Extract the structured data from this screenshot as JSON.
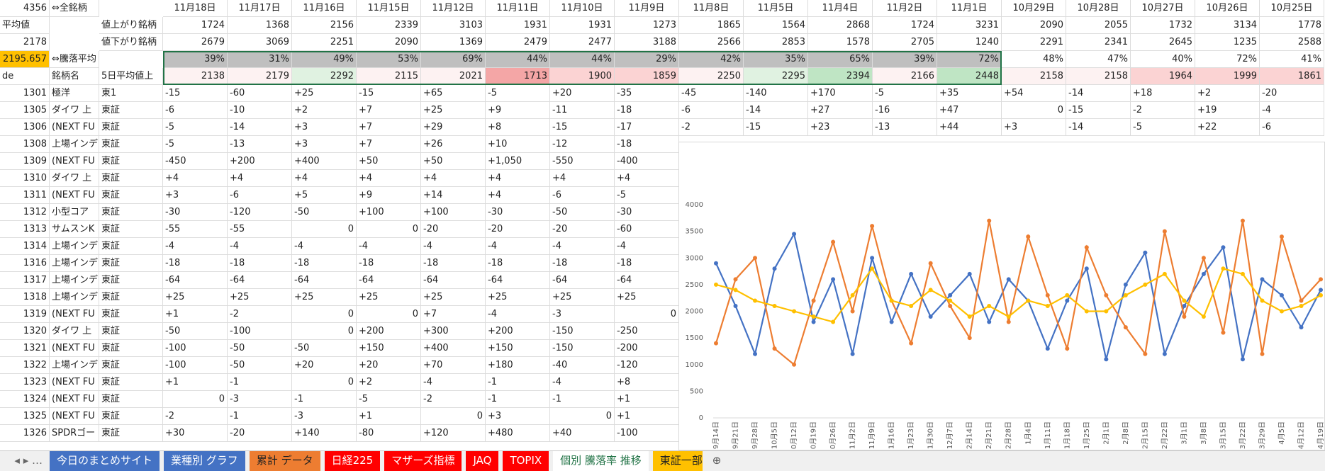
{
  "sheet": {
    "header_rows": [
      {
        "a": "4356",
        "b": "⇔全銘柄",
        "cells": [
          "11月18日",
          "11月17日",
          "11月16日",
          "11月15日",
          "11月12日",
          "11月11日",
          "11月10日",
          "11月9日",
          "11月8日",
          "11月5日",
          "11月4日",
          "11月2日",
          "11月1日",
          "10月29日",
          "10月28日",
          "10月27日",
          "10月26日",
          "10月25日"
        ]
      },
      {
        "a": "平均値",
        "c": "値上がり銘柄",
        "cells": [
          "1724",
          "1368",
          "2156",
          "2339",
          "3103",
          "1931",
          "1931",
          "1273",
          "1865",
          "1564",
          "2868",
          "1724",
          "3231",
          "2090",
          "2055",
          "1732",
          "3134",
          "1778"
        ]
      },
      {
        "a": "2178",
        "c": "値下がり銘柄",
        "cells": [
          "2679",
          "3069",
          "2251",
          "2090",
          "1369",
          "2479",
          "2477",
          "3188",
          "2566",
          "2853",
          "1578",
          "2705",
          "1240",
          "2291",
          "2341",
          "2645",
          "1235",
          "2588"
        ]
      },
      {
        "a": "2195.657",
        "b": "⇔騰落平均",
        "cells": [
          "39%",
          "31%",
          "49%",
          "53%",
          "69%",
          "44%",
          "44%",
          "29%",
          "42%",
          "35%",
          "65%",
          "39%",
          "72%",
          "48%",
          "47%",
          "40%",
          "72%",
          "41%"
        ]
      },
      {
        "a": "de",
        "b": "銘柄名",
        "c": "5日平均値上",
        "cells": [
          "2138",
          "2179",
          "2292",
          "2115",
          "2021",
          "1713",
          "1900",
          "1859",
          "2250",
          "2295",
          "2394",
          "2166",
          "2448",
          "2158",
          "2158",
          "1964",
          "1999",
          "1861"
        ]
      }
    ],
    "rows": [
      {
        "code": "1301",
        "name": "極洋",
        "market": "東1",
        "cells": [
          "-15",
          "-60",
          "+25",
          "-15",
          "+65",
          "-5",
          "+20",
          "-35",
          "-45",
          "-140",
          "+170",
          "-5",
          "+35",
          "+54",
          "-14",
          "+18",
          "+2",
          "-20"
        ]
      },
      {
        "code": "1305",
        "name": "ダイワ 上",
        "market": "東証",
        "cells": [
          "-6",
          "-10",
          "+2",
          "+7",
          "+25",
          "+9",
          "-11",
          "-18",
          "-6",
          "-14",
          "+27",
          "-16",
          "+47",
          "0",
          "-15",
          "-2",
          "+19",
          "-4"
        ]
      },
      {
        "code": "1306",
        "name": "(NEXT FU",
        "market": "東証",
        "cells": [
          "-5",
          "-14",
          "+3",
          "+7",
          "+29",
          "+8",
          "-15",
          "-17",
          "-2",
          "-15",
          "+23",
          "-13",
          "+44",
          "+3",
          "-14",
          "-5",
          "+22",
          "-6"
        ]
      },
      {
        "code": "1308",
        "name": "上場インデ",
        "market": "東証",
        "cells": [
          "-5",
          "-13",
          "+3",
          "+7",
          "+26",
          "+10",
          "-12",
          "-18"
        ]
      },
      {
        "code": "1309",
        "name": "(NEXT FU",
        "market": "東証",
        "cells": [
          "-450",
          "+200",
          "+400",
          "+50",
          "+50",
          "+1,050",
          "-550",
          "-400"
        ]
      },
      {
        "code": "1310",
        "name": "ダイワ 上",
        "market": "東証",
        "cells": [
          "+4",
          "+4",
          "+4",
          "+4",
          "+4",
          "+4",
          "+4",
          "+4"
        ]
      },
      {
        "code": "1311",
        "name": "(NEXT FU",
        "market": "東証",
        "cells": [
          "+3",
          "-6",
          "+5",
          "+9",
          "+14",
          "+4",
          "-6",
          "-5"
        ]
      },
      {
        "code": "1312",
        "name": "小型コア",
        "market": "東証",
        "cells": [
          "-30",
          "-120",
          "-50",
          "+100",
          "+100",
          "-30",
          "-50",
          "-30"
        ]
      },
      {
        "code": "1313",
        "name": "サムスンK",
        "market": "東証",
        "cells": [
          "-55",
          "-55",
          "0",
          "0",
          "-20",
          "-20",
          "-20",
          "-60"
        ]
      },
      {
        "code": "1314",
        "name": "上場インデ",
        "market": "東証",
        "cells": [
          "-4",
          "-4",
          "-4",
          "-4",
          "-4",
          "-4",
          "-4",
          "-4"
        ]
      },
      {
        "code": "1316",
        "name": "上場インデ",
        "market": "東証",
        "cells": [
          "-18",
          "-18",
          "-18",
          "-18",
          "-18",
          "-18",
          "-18",
          "-18"
        ]
      },
      {
        "code": "1317",
        "name": "上場インデ",
        "market": "東証",
        "cells": [
          "-64",
          "-64",
          "-64",
          "-64",
          "-64",
          "-64",
          "-64",
          "-64"
        ]
      },
      {
        "code": "1318",
        "name": "上場インデ",
        "market": "東証",
        "cells": [
          "+25",
          "+25",
          "+25",
          "+25",
          "+25",
          "+25",
          "+25",
          "+25"
        ]
      },
      {
        "code": "1319",
        "name": "(NEXT FU",
        "market": "東証",
        "cells": [
          "+1",
          "-2",
          "0",
          "0",
          "+7",
          "-4",
          "-3",
          "0"
        ]
      },
      {
        "code": "1320",
        "name": "ダイワ 上",
        "market": "東証",
        "cells": [
          "-50",
          "-100",
          "0",
          "+200",
          "+300",
          "+200",
          "-150",
          "-250"
        ]
      },
      {
        "code": "1321",
        "name": "(NEXT FU",
        "market": "東証",
        "cells": [
          "-100",
          "-50",
          "-50",
          "+150",
          "+400",
          "+150",
          "-150",
          "-200"
        ]
      },
      {
        "code": "1322",
        "name": "上場インデ",
        "market": "東証",
        "cells": [
          "-100",
          "-50",
          "+20",
          "+20",
          "+70",
          "+180",
          "-40",
          "-120"
        ]
      },
      {
        "code": "1323",
        "name": "(NEXT FU",
        "market": "東証",
        "cells": [
          "+1",
          "-1",
          "0",
          "+2",
          "-4",
          "-1",
          "-4",
          "+8"
        ]
      },
      {
        "code": "1324",
        "name": "(NEXT FU",
        "market": "東証",
        "cells": [
          "0",
          "-3",
          "-1",
          "-5",
          "-2",
          "-1",
          "-1",
          "+1"
        ]
      },
      {
        "code": "1325",
        "name": "(NEXT FU",
        "market": "東証",
        "cells": [
          "-2",
          "-1",
          "-3",
          "+1",
          "0",
          "+3",
          "0",
          "+1"
        ]
      },
      {
        "code": "1326",
        "name": "SPDRゴー",
        "market": "東証",
        "cells": [
          "+30",
          "-20",
          "+140",
          "-80",
          "+120",
          "+480",
          "+40",
          "-100"
        ]
      }
    ]
  },
  "chart_data": {
    "type": "line",
    "categories": [
      "9月14日",
      "9月21日",
      "9月28日",
      "10月5日",
      "10月12日",
      "10月19日",
      "10月26日",
      "11月2日",
      "11月9日",
      "11月16日",
      "11月23日",
      "11月30日",
      "12月7日",
      "12月14日",
      "12月21日",
      "12月28日",
      "1月4日",
      "1月11日",
      "1月18日",
      "1月25日",
      "2月1日",
      "2月8日",
      "2月15日",
      "2月22日",
      "3月1日",
      "3月8日",
      "3月15日",
      "3月22日",
      "3月29日",
      "4月5日",
      "4月12日",
      "4月19日"
    ],
    "series": [
      {
        "color": "#4472c4",
        "values": [
          2900,
          2100,
          1200,
          2800,
          3450,
          1800,
          2600,
          1200,
          3000,
          1800,
          2700,
          1900,
          2300,
          2700,
          1800,
          2600,
          2200,
          1300,
          2200,
          2800,
          1100,
          2500,
          3100,
          1200,
          2100,
          2700,
          3200,
          1100,
          2600,
          2300,
          1700,
          2400
        ]
      },
      {
        "color": "#ed7d31",
        "values": [
          1400,
          2600,
          3000,
          1300,
          1000,
          2200,
          3300,
          2000,
          3600,
          2200,
          1400,
          2900,
          2100,
          1500,
          3700,
          1800,
          3400,
          2300,
          1300,
          3200,
          2300,
          1700,
          1200,
          3500,
          1900,
          3000,
          1600,
          3700,
          1200,
          3400,
          2200,
          2600
        ]
      },
      {
        "color": "#ffc000",
        "values": [
          2500,
          2400,
          2200,
          2100,
          2000,
          1900,
          1800,
          2300,
          2800,
          2200,
          2100,
          2400,
          2200,
          1900,
          2100,
          1900,
          2200,
          2100,
          2300,
          2000,
          2000,
          2300,
          2500,
          2700,
          2200,
          1900,
          2800,
          2700,
          2200,
          2000,
          2100,
          2300
        ]
      }
    ],
    "ylim": [
      0,
      4000
    ],
    "yticks": [
      0,
      500,
      1000,
      1500,
      2000,
      2500,
      3000,
      3500,
      4000
    ]
  },
  "tabs": [
    "今日のまとめサイト",
    "業種別 グラフ",
    "累計 データ",
    "日経225",
    "マザーズ指標",
    "JAQ",
    "TOPIX",
    "個別 騰落率 推移",
    "東証一部"
  ]
}
